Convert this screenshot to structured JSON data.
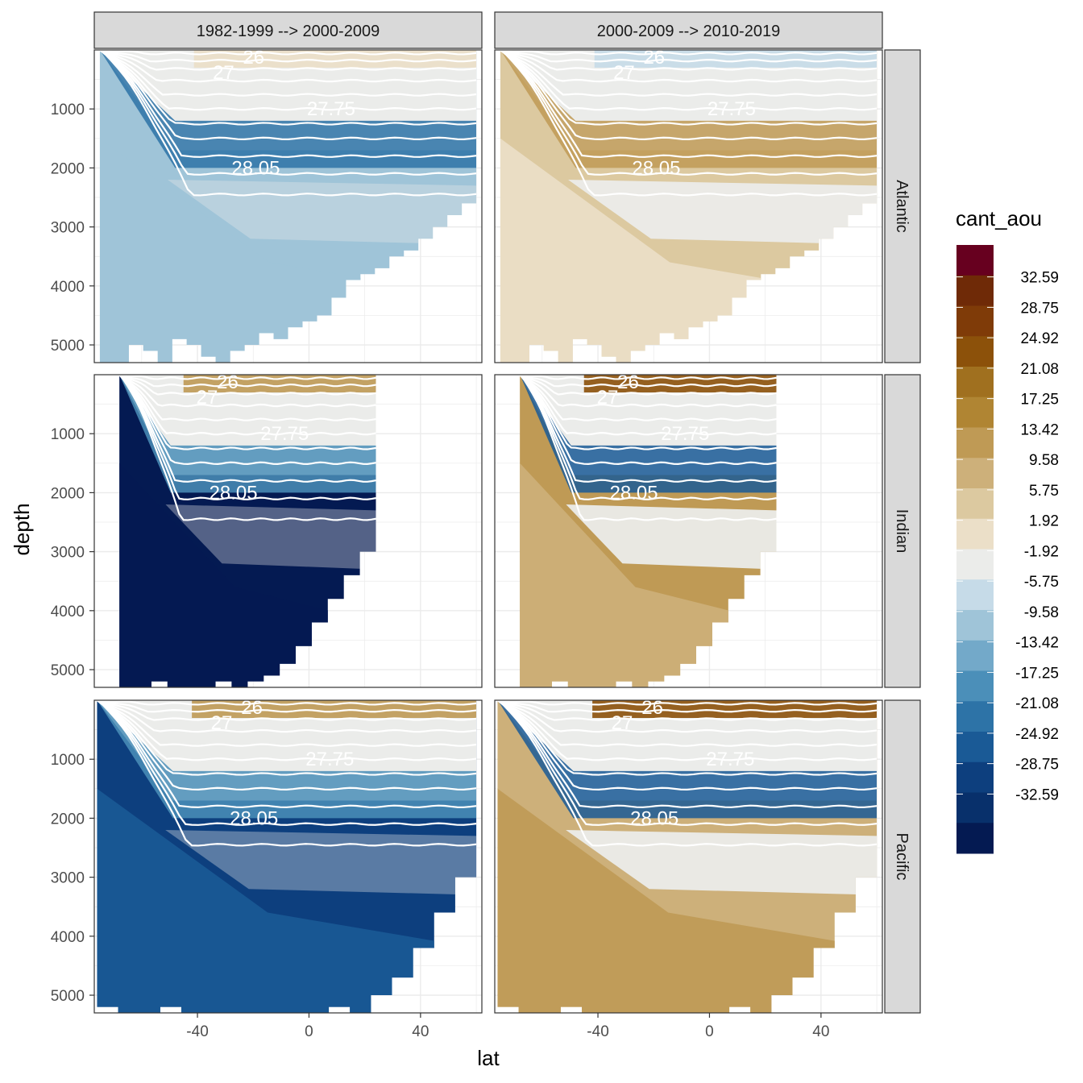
{
  "chart_data": {
    "type": "heatmap",
    "title": "",
    "xlabel": "lat",
    "ylabel": "depth",
    "x_ticks": [
      "-40",
      "0",
      "40"
    ],
    "x_tick_values": [
      -40,
      0,
      40
    ],
    "y_ticks": [
      "1000",
      "2000",
      "3000",
      "4000",
      "5000"
    ],
    "y_tick_values": [
      1000,
      2000,
      3000,
      4000,
      5000
    ],
    "xlim": [
      -77,
      62
    ],
    "ylim": [
      5300,
      0
    ],
    "y_reversed": true,
    "grid": true,
    "column_facets": [
      "1982-1999 --> 2000-2009",
      "2000-2009 --> 2010-2019"
    ],
    "row_facets": [
      "Atlantic",
      "Indian",
      "Pacific"
    ],
    "legend": {
      "title": "cant_aou",
      "position": "right",
      "labels": [
        "32.59",
        "28.75",
        "24.92",
        "21.08",
        "17.25",
        "13.42",
        "9.58",
        "5.75",
        "1.92",
        "-1.92",
        "-5.75",
        "-9.58",
        "-13.42",
        "-17.25",
        "-21.08",
        "-24.92",
        "-28.75",
        "-32.59"
      ],
      "colors": [
        "#67001f",
        "#6f2a07",
        "#7f3b08",
        "#8c510a",
        "#a0701f",
        "#b08533",
        "#bf9a55",
        "#cdb07a",
        "#dcc9a0",
        "#ebdfc8",
        "#ebecea",
        "#c6dbe8",
        "#9fc4d8",
        "#73a9c9",
        "#4b8fb9",
        "#2d73a7",
        "#1a5a96",
        "#0d3f7e",
        "#08306b",
        "#041a52"
      ]
    },
    "isopycnal_labels": [
      "26",
      "27",
      "27.75",
      "28.05"
    ],
    "panels": [
      {
        "column": 0,
        "row": 0,
        "bottom_depth": [
          5400,
          5400,
          5000,
          5100,
          5300,
          4900,
          5000,
          5200,
          5300,
          5100,
          5000,
          4800,
          4900,
          4700,
          4600,
          4500,
          4200,
          3900,
          3800,
          3700,
          3500,
          3400,
          3200,
          3000,
          2800,
          2600
        ],
        "surface_color": "#ebdfc8",
        "deep_color": "#9fc4d8",
        "mid_color": "#2d73a7",
        "abyss_color": "#9fc4d8",
        "lat_start": -75,
        "lat_end": 60
      },
      {
        "column": 1,
        "row": 0,
        "bottom_depth": [
          5400,
          5400,
          5000,
          5100,
          5300,
          4900,
          5000,
          5200,
          5300,
          5100,
          5000,
          4800,
          4900,
          4700,
          4600,
          4500,
          4200,
          3900,
          3800,
          3700,
          3500,
          3400,
          3200,
          3000,
          2800,
          2600
        ],
        "surface_color": "#c6dbe8",
        "deep_color": "#dcc9a0",
        "mid_color": "#bf9a55",
        "abyss_color": "#ebdfc8",
        "lat_start": -75,
        "lat_end": 60
      },
      {
        "column": 0,
        "row": 1,
        "bottom_depth": [
          5300,
          5400,
          5200,
          5400,
          5300,
          5400,
          5200,
          5300,
          5200,
          5100,
          4900,
          4600,
          4200,
          3800,
          3400,
          3000
        ],
        "surface_color": "#bf9a55",
        "deep_color": "#041a52",
        "mid_color": "#4b8fb9",
        "abyss_color": "#041a52",
        "lat_start": -68,
        "lat_end": 24
      },
      {
        "column": 1,
        "row": 1,
        "bottom_depth": [
          5300,
          5400,
          5200,
          5400,
          5300,
          5400,
          5200,
          5300,
          5200,
          5100,
          4900,
          4600,
          4200,
          3800,
          3400,
          3000
        ],
        "surface_color": "#8c510a",
        "deep_color": "#bf9a55",
        "mid_color": "#1a5a96",
        "abyss_color": "#cdb07a",
        "lat_start": -68,
        "lat_end": 24
      },
      {
        "column": 0,
        "row": 2,
        "bottom_depth": [
          5200,
          5300,
          5400,
          5200,
          5400,
          5300,
          5400,
          5300,
          5400,
          5300,
          5400,
          5200,
          5300,
          5000,
          4700,
          4200,
          3600,
          3000
        ],
        "surface_color": "#bf9a55",
        "deep_color": "#0d3f7e",
        "mid_color": "#4b8fb9",
        "abyss_color": "#1a5a96",
        "lat_start": -76,
        "lat_end": 60
      },
      {
        "column": 1,
        "row": 2,
        "bottom_depth": [
          5200,
          5300,
          5400,
          5200,
          5400,
          5300,
          5400,
          5300,
          5400,
          5300,
          5400,
          5200,
          5300,
          5000,
          4700,
          4200,
          3600,
          3000
        ],
        "surface_color": "#8c510a",
        "deep_color": "#cdb07a",
        "mid_color": "#1a5a96",
        "abyss_color": "#bf9a55",
        "lat_start": -76,
        "lat_end": 60
      }
    ]
  }
}
